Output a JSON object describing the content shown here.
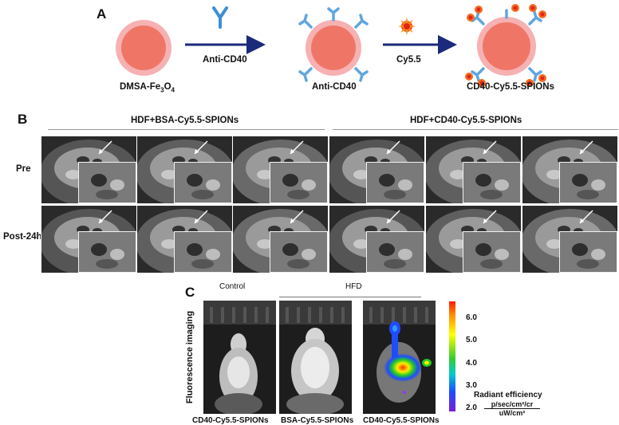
{
  "panel_a": {
    "letter": "A",
    "step1_label": "DMSA-Fe",
    "step1_sub1": "3",
    "step1_mid": "O",
    "step1_sub2": "4",
    "arrow1_label": "Anti-CD40",
    "step2_label": "Anti-CD40",
    "arrow2_label": "Cy5.5",
    "step3_label": "CD40-Cy5.5-SPIONs"
  },
  "panel_b": {
    "letter": "B",
    "group1": "HDF+BSA-Cy5.5-SPIONs",
    "group2": "HDF+CD40-Cy5.5-SPIONs",
    "row1": "Pre",
    "row2": "Post-24h"
  },
  "panel_c": {
    "letter": "C",
    "control_header": "Control",
    "hfd_header": "HFD",
    "side_label": "Fluorescence imaging",
    "captions": [
      "CD40-Cy5.5-SPIONs",
      "BSA-Cy5.5-SPIONs",
      "CD40-Cy5.5-SPIONs"
    ],
    "colorbar": {
      "ticks": [
        "6.0",
        "5.0",
        "4.0",
        "3.0",
        "2.0"
      ],
      "title": "Radiant efficiency",
      "unit_num": "p/sec/cm²/cr",
      "unit_den": "uW/cm²"
    }
  }
}
